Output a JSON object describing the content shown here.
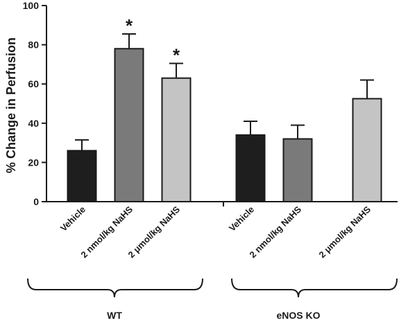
{
  "chart_data": {
    "type": "bar",
    "ylabel": "% Change in Perfusion",
    "xlabel": "",
    "title": "",
    "ylim": [
      0,
      100
    ],
    "yticks": [
      0,
      20,
      40,
      60,
      80,
      100
    ],
    "grid": false,
    "groups": [
      {
        "label": "WT",
        "bars": [
          {
            "category": "Vehicle",
            "value": 26,
            "error": 5.5,
            "annotation": "",
            "color": "#1e1e1e"
          },
          {
            "category": "2 nmol/kg NaHS",
            "value": 78,
            "error": 7.5,
            "annotation": "*",
            "color": "#7a7a7a"
          },
          {
            "category": "2 μmol/kg NaHS",
            "value": 63,
            "error": 7.5,
            "annotation": "*",
            "color": "#c4c4c4"
          }
        ]
      },
      {
        "label": "eNOS KO",
        "bars": [
          {
            "category": "Vehicle",
            "value": 34,
            "error": 7,
            "annotation": "",
            "color": "#1e1e1e"
          },
          {
            "category": "2 nmol/kg NaHS",
            "value": 32,
            "error": 7,
            "annotation": "",
            "color": "#7a7a7a"
          },
          {
            "category": "2 μmol/kg NaHS",
            "value": 52.5,
            "error": 9.5,
            "annotation": "",
            "color": "#c4c4c4"
          }
        ]
      }
    ]
  }
}
